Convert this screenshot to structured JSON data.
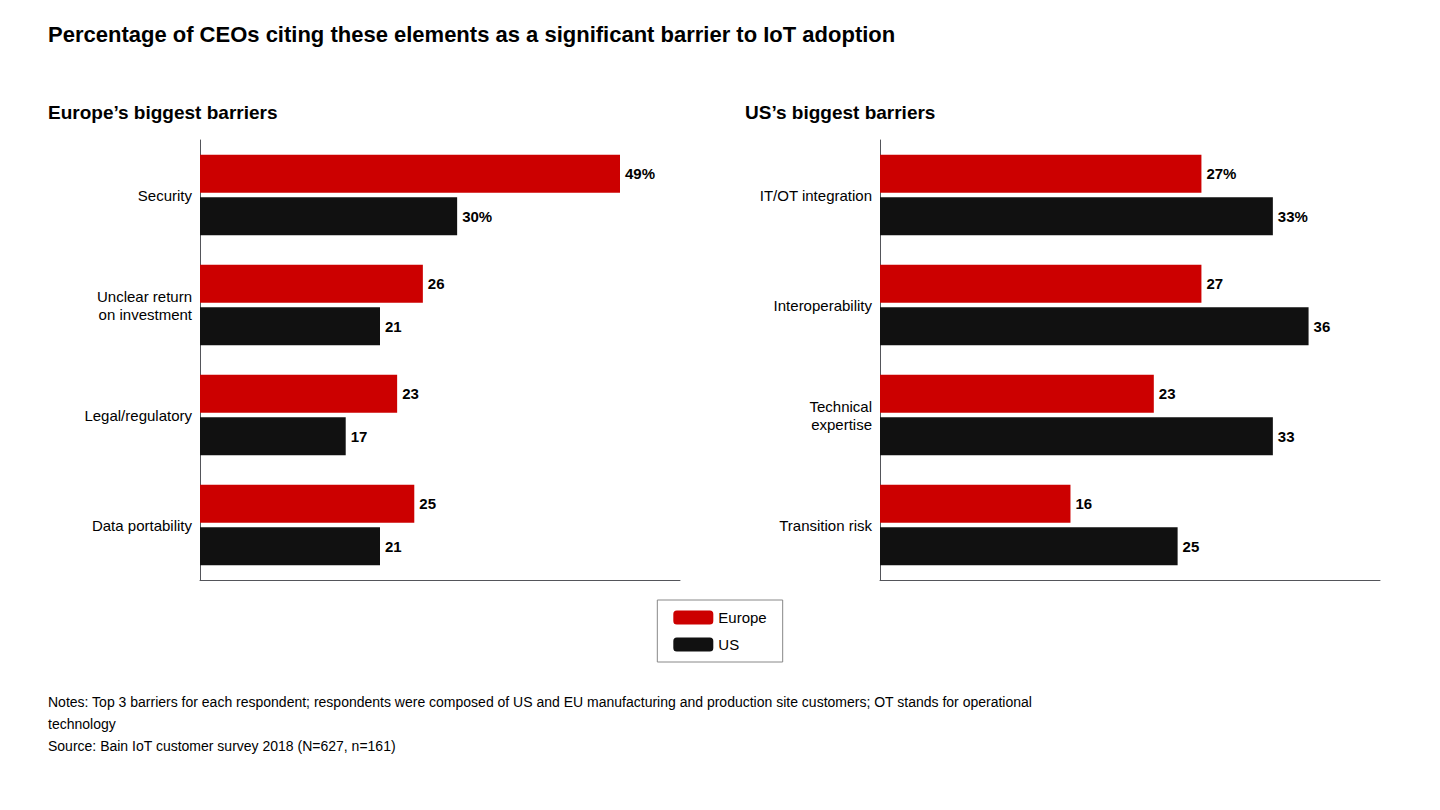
{
  "chart_data": [
    {
      "type": "bar",
      "orientation": "horizontal",
      "title": "Percentage of CEOs citing these elements as a significant barrier to IoT adoption",
      "subtitle": "Europe’s biggest barriers",
      "categories": [
        "Security",
        "Unclear return\non investment",
        "Legal/regulatory",
        "Data portability"
      ],
      "series": [
        {
          "name": "Europe",
          "color": "#cc0000",
          "values": [
            49,
            26,
            23,
            25
          ],
          "value_labels": [
            "49%",
            "26",
            "23",
            "25"
          ]
        },
        {
          "name": "US",
          "color": "#111111",
          "values": [
            30,
            21,
            17,
            21
          ],
          "value_labels": [
            "30%",
            "21",
            "17",
            "21"
          ]
        }
      ],
      "xlim": [
        0,
        56
      ],
      "grid": false,
      "tick_labels": "y",
      "data_labels": true,
      "legend": "bottom",
      "annotations": [
        "Notes: Top 3 barriers for each respondent; respondents were composed of US and EU manufacturing and production site customers; OT stands for operational",
        "technology",
        "Source: Bain IoT customer survey 2018 (N=627, n=161)"
      ]
    },
    {
      "type": "bar",
      "orientation": "horizontal",
      "subtitle": "US’s biggest barriers",
      "categories": [
        "IT/OT integration",
        "Interoperability",
        "Technical\nexpertise",
        "Transition risk"
      ],
      "series": [
        {
          "name": "Europe",
          "color": "#cc0000",
          "values": [
            27,
            27,
            23,
            16
          ],
          "value_labels": [
            "27%",
            "27",
            "23",
            "16"
          ]
        },
        {
          "name": "US",
          "color": "#111111",
          "values": [
            33,
            36,
            33,
            25
          ],
          "value_labels": [
            "33%",
            "36",
            "33",
            "25"
          ]
        }
      ],
      "xlim": [
        0,
        42
      ],
      "grid": false,
      "tick_labels": "y",
      "data_labels": true
    }
  ]
}
